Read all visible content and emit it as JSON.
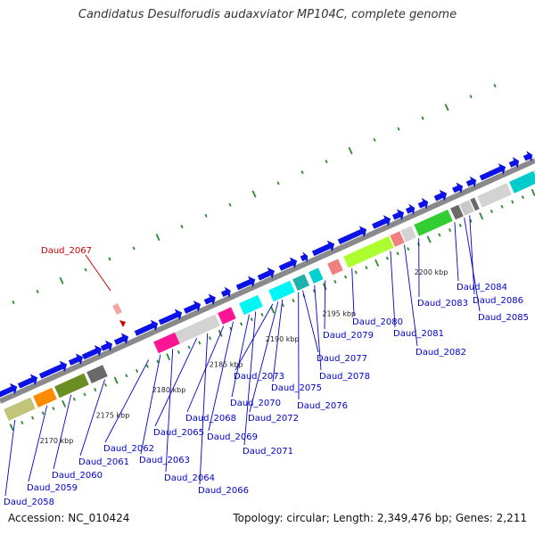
{
  "title": "Candidatus Desulforudis audaxviator MP104C, complete genome",
  "footer": {
    "accession": "Accession: NC_010424",
    "summary": "Topology: circular; Length: 2,349,476 bp; Genes: 2,211"
  },
  "highlighted_gene": "Daud_2067",
  "scale_labels": [
    "2170 kbp",
    "2175 kbp",
    "2180 kbp",
    "2185 kbp",
    "2190 kbp",
    "2195 kbp",
    "2200 kbp"
  ],
  "gene_labels": [
    "Daud_2058",
    "Daud_2059",
    "Daud_2060",
    "Daud_2061",
    "Daud_2062",
    "Daud_2063",
    "Daud_2064",
    "Daud_2065",
    "Daud_2066",
    "Daud_2068",
    "Daud_2069",
    "Daud_2070",
    "Daud_2071",
    "Daud_2072",
    "Daud_2073",
    "Daud_2075",
    "Daud_2076",
    "Daud_2077",
    "Daud_2078",
    "Daud_2079",
    "Daud_2080",
    "Daud_2081",
    "Daud_2082",
    "Daud_2083",
    "Daud_2084",
    "Daud_2085",
    "Daud_2086"
  ],
  "colors": {
    "backbone": "#8a8a8a",
    "forward_genes": "#0b12e6",
    "tick": "#2a8a2a",
    "label": "#0000cc",
    "highlight": "#cc0000",
    "highlight_gene": "#f4a7a7"
  },
  "gene_fills": [
    "#c2c47a",
    "#ff8c00",
    "#6b8e23",
    "#6a6a6a",
    "#ff1493",
    "#d3d3d3",
    "#ff1493",
    "#00f5f5",
    "#00f5f5",
    "#20b2aa",
    "#00d0d0",
    "#f08080",
    "#adff2f",
    "#f08080",
    "#d3d3d3",
    "#32cd32",
    "#6a6a6a",
    "#c8c8c8",
    "#6a6a6a",
    "#d3d3d3",
    "#00cccc",
    "#6a6a6a"
  ]
}
